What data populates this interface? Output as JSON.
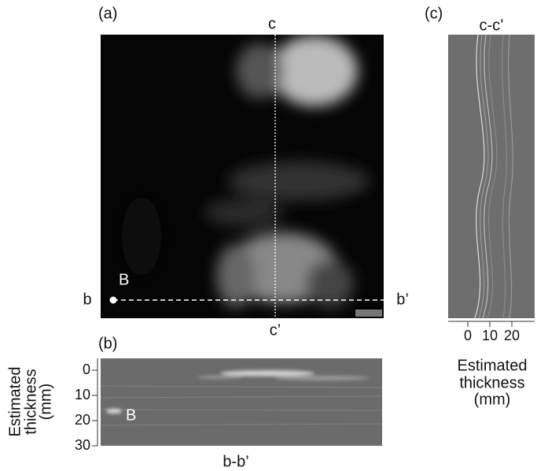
{
  "panel_a": {
    "label": "(a)",
    "top_label": "c",
    "bottom_label": "c’",
    "left_label": "b",
    "right_label": "b’",
    "point_label": "B"
  },
  "panel_b": {
    "label": "(b)",
    "title": "b-b’",
    "point_label": "B",
    "axis_label": [
      "Estimated",
      "thickness",
      "(mm)"
    ],
    "ticks": [
      0,
      10,
      20,
      30
    ]
  },
  "panel_c": {
    "label": "(c)",
    "title": "c-c’",
    "axis_label": [
      "Estimated",
      "thickness",
      "(mm)"
    ],
    "ticks": [
      0,
      10,
      20
    ]
  }
}
